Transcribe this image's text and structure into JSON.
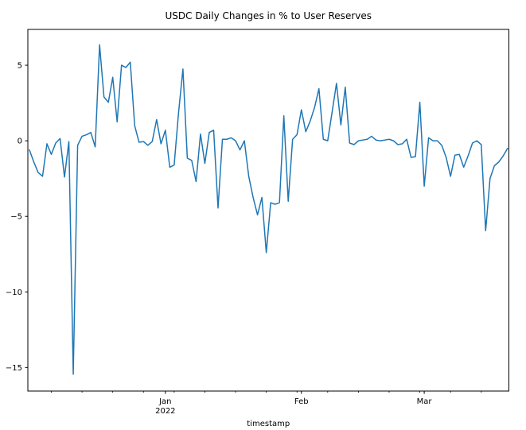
{
  "figure": {
    "background": "#ffffff"
  },
  "chart_data": {
    "type": "line",
    "title": "USDC Daily Changes in % to User Reserves",
    "xlabel": "timestamp",
    "ylabel": "",
    "series_name": "USDC daily change in % to user reserves",
    "line_color": "#1f77b4",
    "spine_color": "#000000",
    "background_color": "#ffffff",
    "grid": false,
    "legend_position": "none",
    "start_date": "2021-12-01",
    "end_date": "2022-03-20",
    "frequency": "daily",
    "values": [
      -0.6,
      -1.4,
      -2.1,
      -2.35,
      -0.2,
      -0.9,
      -0.15,
      0.15,
      -2.4,
      -0.05,
      -15.45,
      -0.3,
      0.3,
      0.4,
      0.55,
      -0.4,
      6.35,
      2.9,
      2.55,
      4.2,
      1.25,
      5.0,
      4.85,
      5.2,
      1.0,
      -0.1,
      -0.05,
      -0.3,
      -0.05,
      1.4,
      -0.2,
      0.7,
      -1.75,
      -1.6,
      1.85,
      4.75,
      -1.15,
      -1.3,
      -2.7,
      0.45,
      -1.5,
      0.55,
      0.7,
      -4.45,
      0.1,
      0.1,
      0.2,
      0.0,
      -0.6,
      0.0,
      -2.35,
      -3.75,
      -4.9,
      -3.75,
      -7.4,
      -4.1,
      -4.2,
      -4.1,
      1.65,
      -4.0,
      0.1,
      0.4,
      2.05,
      0.6,
      1.3,
      2.2,
      3.45,
      0.1,
      0.0,
      1.9,
      3.8,
      1.05,
      3.55,
      -0.15,
      -0.25,
      0.0,
      0.05,
      0.1,
      0.3,
      0.05,
      0.0,
      0.05,
      0.1,
      0.0,
      -0.25,
      -0.2,
      0.1,
      -1.1,
      -1.05,
      2.55,
      -3.0,
      0.2,
      0.0,
      0.0,
      -0.3,
      -1.1,
      -2.35,
      -0.95,
      -0.9,
      -1.75,
      -1.0,
      -0.15,
      0.0,
      -0.25,
      -5.95,
      -2.5,
      -1.65,
      -1.4,
      -1.0,
      -0.5
    ],
    "ylim": [
      -16.56,
      7.37
    ],
    "y_ticks": [
      5,
      0,
      -5,
      -10,
      -15
    ],
    "y_tick_labels": [
      "5",
      "0",
      "−5",
      "−10",
      "−15"
    ],
    "x_major_ticks": [
      {
        "day_index": 31,
        "label": "Jan",
        "sublabel": "2022"
      },
      {
        "day_index": 62,
        "label": "Feb",
        "sublabel": ""
      },
      {
        "day_index": 90,
        "label": "Mar",
        "sublabel": ""
      }
    ],
    "x_minor_tick_day_indices": [
      5,
      12,
      19,
      26,
      33,
      40,
      47,
      54,
      61,
      68,
      75,
      82,
      89,
      96,
      103
    ],
    "xlim_day_indices": [
      -0.35,
      109.3
    ]
  }
}
